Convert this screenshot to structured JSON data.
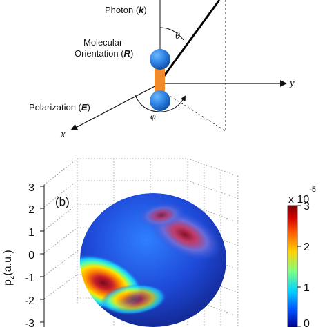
{
  "diagram": {
    "photon_label": "Photon (",
    "photon_sym": "k",
    "photon_close": ")",
    "theta": "θ",
    "mol_line1": "Molecular",
    "mol_line2": "Orientation (",
    "mol_sym": "R",
    "mol_close": ")",
    "pol_label": "Polarization (",
    "pol_sym": "E",
    "pol_close": ")",
    "phi": "φ",
    "axis_x": "x",
    "axis_y": "y"
  },
  "panel_b": {
    "label": "(b)",
    "ylabel": "p",
    "ylabel_sub": "z",
    "ylabel_unit": "(a.u.)",
    "yticks": [
      "3",
      "2",
      "1",
      "0",
      "-1",
      "-2",
      "-3"
    ],
    "colorbar": {
      "ticks": [
        "3",
        "2",
        "1",
        "0"
      ],
      "exp_base": "x 10",
      "exp_power": "-5",
      "colors": [
        "#7a0000",
        "#d40000",
        "#ff5a00",
        "#ffd200",
        "#7fff7f",
        "#00d4ff",
        "#0050ff",
        "#00008f"
      ]
    }
  }
}
